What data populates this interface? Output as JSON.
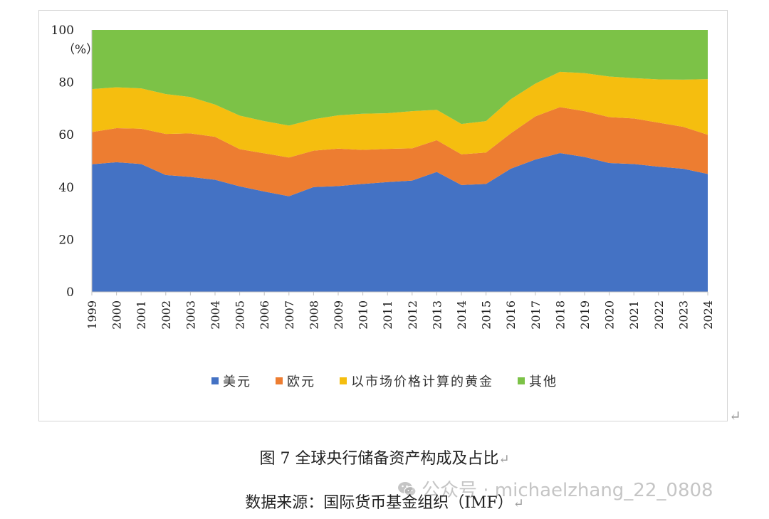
{
  "chart_data": {
    "type": "area",
    "stacked": true,
    "x": [
      "1999",
      "2000",
      "2001",
      "2002",
      "2003",
      "2004",
      "2005",
      "2006",
      "2007",
      "2008",
      "2009",
      "2010",
      "2011",
      "2012",
      "2013",
      "2014",
      "2015",
      "2016",
      "2017",
      "2018",
      "2019",
      "2020",
      "2021",
      "2022",
      "2023",
      "2024"
    ],
    "series": [
      {
        "name": "美元",
        "color": "#4472C4",
        "values": [
          48.7,
          49.5,
          48.8,
          44.6,
          43.9,
          42.8,
          40.3,
          38.3,
          36.5,
          40.0,
          40.4,
          41.2,
          41.9,
          42.5,
          45.8,
          40.8,
          41.2,
          47.0,
          50.5,
          53.0,
          51.5,
          49.2,
          48.8,
          47.8,
          47.0,
          45.0
        ]
      },
      {
        "name": "欧元",
        "color": "#ED7D31",
        "values": [
          12.3,
          13.0,
          13.5,
          15.7,
          16.6,
          16.4,
          14.2,
          14.6,
          14.8,
          13.9,
          14.3,
          13.0,
          12.7,
          12.3,
          12.1,
          11.7,
          12.0,
          13.5,
          16.5,
          17.5,
          17.5,
          17.5,
          17.4,
          16.8,
          16.0,
          15.0
        ]
      },
      {
        "name": "以市场价格计算的黄金",
        "color": "#F5BE0F",
        "values": [
          16.4,
          15.6,
          15.4,
          15.2,
          13.9,
          12.3,
          12.8,
          12.3,
          12.2,
          12.0,
          12.7,
          13.8,
          13.6,
          14.2,
          11.6,
          11.6,
          12.0,
          13.0,
          12.5,
          13.5,
          14.5,
          15.5,
          15.4,
          16.5,
          18.0,
          21.2
        ]
      },
      {
        "name": "其他",
        "color": "#7CC247",
        "values": [
          22.6,
          21.9,
          22.3,
          24.5,
          25.6,
          28.5,
          32.7,
          34.8,
          36.5,
          34.1,
          32.6,
          32.0,
          31.8,
          31.0,
          30.5,
          35.9,
          34.8,
          26.5,
          20.5,
          16.0,
          16.5,
          17.8,
          18.4,
          18.9,
          19.0,
          18.8
        ]
      }
    ],
    "ylim": [
      0,
      100
    ],
    "yticks": [
      0,
      20,
      40,
      60,
      80,
      100
    ],
    "ylabel_unit": "（%）",
    "legend_position": "bottom",
    "grid": false
  },
  "caption": "图 7 全球央行储备资产构成及占比",
  "source": "数据来源：国际货币基金组织（IMF）",
  "watermark": "公众号 · michaelzhang_22_0808",
  "return_mark": "↵"
}
